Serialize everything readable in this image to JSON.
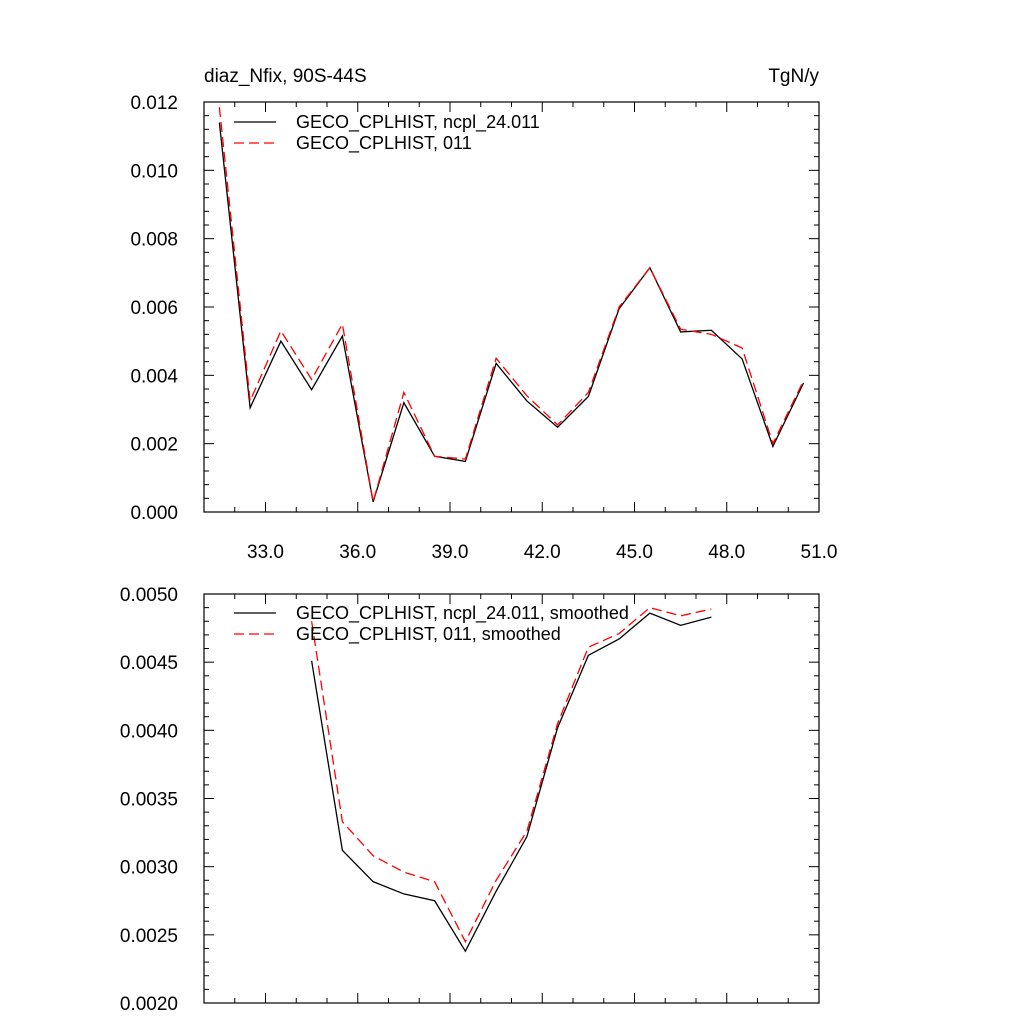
{
  "chart_data": [
    {
      "type": "line",
      "title_left": "diaz_Nfix, 90S-44S",
      "title_right": "TgN/y",
      "xlim": [
        31.0,
        51.0
      ],
      "ylim": [
        0.0,
        0.012
      ],
      "x_ticks": [
        "33.0",
        "36.0",
        "39.0",
        "42.0",
        "45.0",
        "48.0",
        "51.0"
      ],
      "y_ticks": [
        "0.000",
        "0.002",
        "0.004",
        "0.006",
        "0.008",
        "0.010",
        "0.012"
      ],
      "grid": false,
      "legend": "top-left",
      "x": [
        31.5,
        32.5,
        33.5,
        34.5,
        35.5,
        36.5,
        37.5,
        38.5,
        39.5,
        40.5,
        41.5,
        42.5,
        43.5,
        44.5,
        45.5,
        46.5,
        47.5,
        48.5,
        49.5,
        50.5
      ],
      "series": [
        {
          "name": "GECO_CPLHIST, ncpl_24.011",
          "color": "#000000",
          "dash": "solid",
          "values": [
            0.0114,
            0.00305,
            0.005,
            0.00358,
            0.00515,
            0.0003,
            0.0032,
            0.00163,
            0.00148,
            0.00435,
            0.00325,
            0.00248,
            0.00338,
            0.00595,
            0.00715,
            0.00527,
            0.00532,
            0.00448,
            0.00192,
            0.00378
          ]
        },
        {
          "name": "GECO_CPLHIST, 011",
          "color": "#ff0000",
          "dash": "dashed",
          "values": [
            0.01185,
            0.00325,
            0.0053,
            0.00388,
            0.0055,
            0.0003,
            0.0035,
            0.00163,
            0.00155,
            0.0045,
            0.0034,
            0.00255,
            0.0035,
            0.006,
            0.00715,
            0.00535,
            0.0052,
            0.0048,
            0.002,
            0.00385
          ]
        }
      ]
    },
    {
      "type": "line",
      "xlim": [
        31.0,
        51.0
      ],
      "ylim": [
        0.002,
        0.005
      ],
      "y_ticks": [
        "0.0020",
        "0.0025",
        "0.0030",
        "0.0035",
        "0.0040",
        "0.0045",
        "0.0050"
      ],
      "grid": false,
      "legend": "top-center",
      "x": [
        34.5,
        35.5,
        36.5,
        37.5,
        38.5,
        39.5,
        40.5,
        41.5,
        42.5,
        43.5,
        44.5,
        45.5,
        46.5,
        47.5
      ],
      "series": [
        {
          "name": "GECO_CPLHIST, ncpl_24.011, smoothed",
          "color": "#000000",
          "dash": "solid",
          "values": [
            0.00451,
            0.00312,
            0.00289,
            0.0028,
            0.00275,
            0.00238,
            0.00282,
            0.00322,
            0.00402,
            0.00455,
            0.00467,
            0.00486,
            0.00477,
            0.00483
          ]
        },
        {
          "name": "GECO_CPLHIST, 011, smoothed",
          "color": "#ff0000",
          "dash": "dashed",
          "values": [
            0.0048,
            0.00333,
            0.00308,
            0.00296,
            0.00289,
            0.00245,
            0.0029,
            0.00326,
            0.00405,
            0.00461,
            0.00471,
            0.0049,
            0.00484,
            0.00489
          ]
        }
      ]
    }
  ]
}
